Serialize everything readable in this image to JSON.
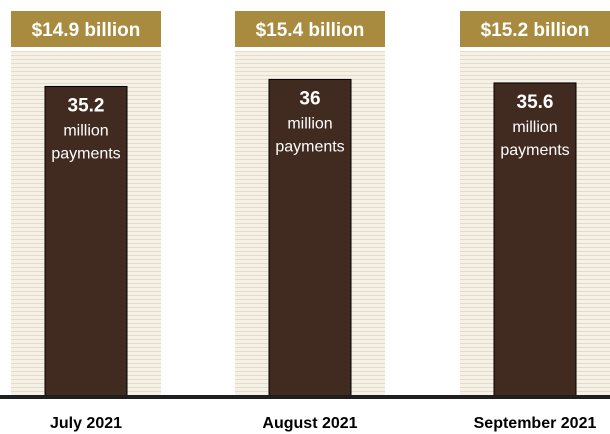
{
  "chart_data": {
    "type": "bar",
    "categories": [
      "July 2021",
      "August 2021",
      "September 2021"
    ],
    "series": [
      {
        "values": [
          35.2,
          36,
          35.6
        ],
        "value_labels": [
          "35.2",
          "36",
          "35.6"
        ],
        "unit_lines": [
          "million",
          "payments"
        ]
      }
    ],
    "amount_labels": [
      "$14.9 billion",
      "$15.4 billion",
      "$15.2 billion"
    ],
    "ylim": [
      0,
      45
    ],
    "grid": false,
    "legend": "none"
  },
  "colors": {
    "header": "#a88b3e",
    "bar": "#412a20",
    "stripe_light": "#f6f1e6",
    "stripe_dark": "#e4dcc9"
  }
}
